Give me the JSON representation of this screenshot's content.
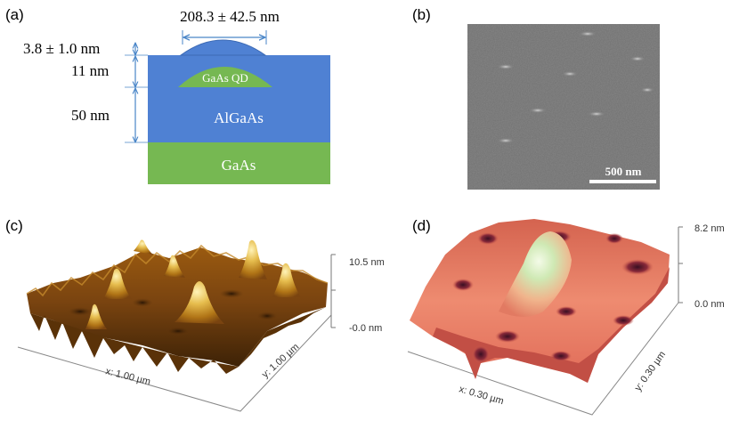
{
  "panels": {
    "a": {
      "label": "(a)",
      "width_annotation": "208.3  ± 42.5 nm",
      "cap_thickness": "3.8 ± 1.0 nm",
      "cap_layer": "11 nm",
      "barrier_layer": "50 nm",
      "qd_label": "GaAs QD",
      "barrier_label": "AlGaAs",
      "substrate_label": "GaAs",
      "colors": {
        "algaas": "#4f81d3",
        "gaas": "#76b852",
        "arrow": "#4a86c8"
      }
    },
    "b": {
      "label": "(b)",
      "scale_bar": "500 nm"
    },
    "c": {
      "label": "(c)",
      "z_max": "10.5 nm",
      "z_min": "-0.0 nm",
      "x_axis": "x: 1.00 µm",
      "y_axis": "y: 1.00 µm",
      "colors": {
        "low": "#4a2a06",
        "mid": "#a2620f",
        "high": "#f1de8c"
      }
    },
    "d": {
      "label": "(d)",
      "z_max": "8.2 nm",
      "z_min": "0.0 nm",
      "x_axis": "x: 0.30 µm",
      "y_axis": "y: 0.30 µm",
      "colors": {
        "low": "#3a0f22",
        "mid": "#e57a66",
        "high": "#e6f3d6"
      }
    }
  }
}
